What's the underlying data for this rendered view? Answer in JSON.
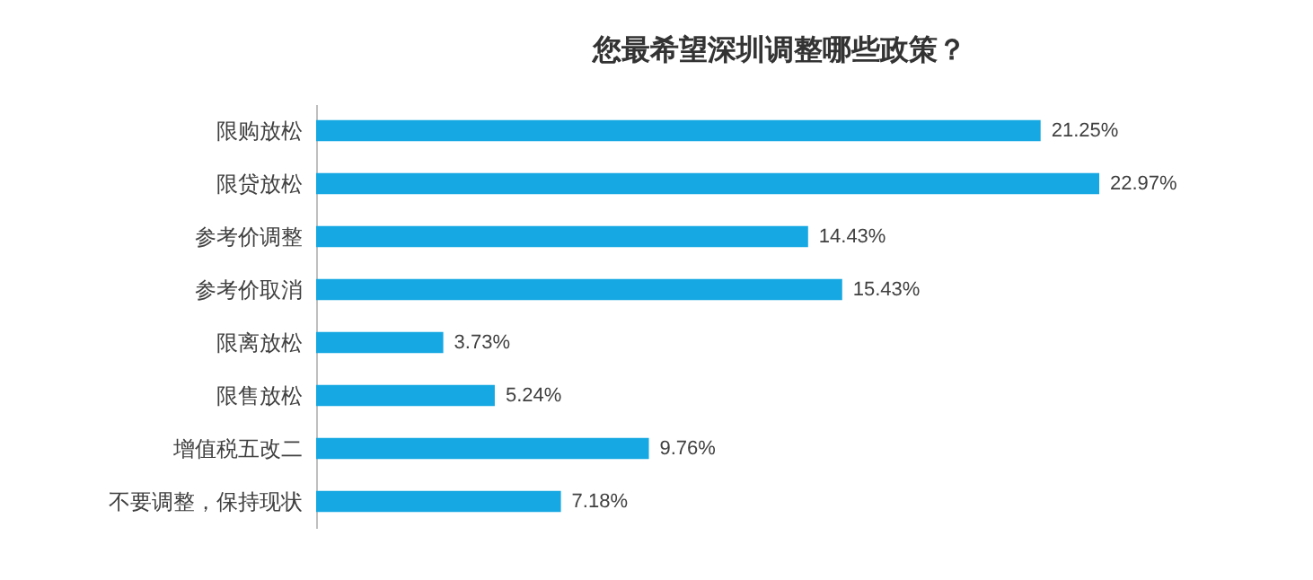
{
  "chart_data": {
    "type": "bar",
    "orientation": "horizontal",
    "title": "您最希望深圳调整哪些政策？",
    "categories": [
      "限购放松",
      "限贷放松",
      "参考价调整",
      "参考价取消",
      "限离放松",
      "限售放松",
      "增值税五改二",
      "不要调整，保持现状"
    ],
    "values": [
      21.25,
      22.97,
      14.43,
      15.43,
      3.73,
      5.24,
      9.76,
      7.18
    ],
    "value_labels": [
      "21.25%",
      "22.97%",
      "14.43%",
      "15.43%",
      "3.73%",
      "5.24%",
      "9.76%",
      "7.18%"
    ],
    "color": "#15a8e2"
  }
}
